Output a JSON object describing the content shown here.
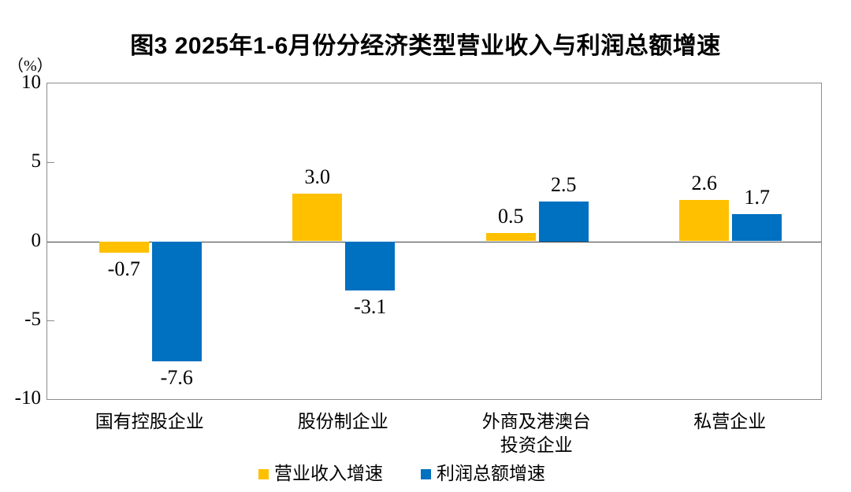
{
  "title": "图3 2025年1-6月份分经济类型营业收入与利润总额增速",
  "chart_data": {
    "type": "bar",
    "title": "图3 2025年1-6月份分经济类型营业收入与利润总额增速",
    "unit": "（%）",
    "categories": [
      "国有控股企业",
      "股份制企业",
      "外商及港澳台\n投资企业",
      "私营企业"
    ],
    "series": [
      {
        "key": "revenue",
        "name": "营业收入增速",
        "color": "#FFC000",
        "values": [
          -0.7,
          3.0,
          0.5,
          2.6
        ]
      },
      {
        "key": "profit",
        "name": "利润总额增速",
        "color": "#0070C0",
        "values": [
          -7.6,
          -3.1,
          2.5,
          1.7
        ]
      }
    ],
    "ylim": [
      -10,
      10
    ],
    "yticks": [
      10,
      5,
      0,
      -5,
      -10
    ],
    "grid": false,
    "legend_position": "bottom",
    "value_label_format": "one_decimal",
    "colors": {
      "axis_border": "#8c8c8c",
      "zero_line": "#404040",
      "text": "#000000"
    }
  }
}
